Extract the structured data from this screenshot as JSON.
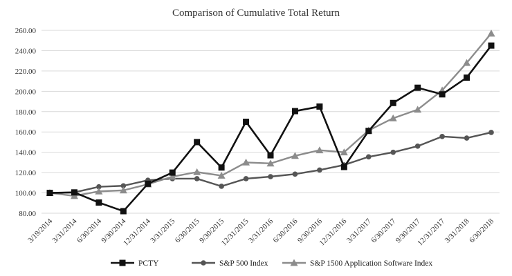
{
  "chart_data": {
    "type": "line",
    "title": "Comparison of Cumulative Total Return",
    "xlabel": "",
    "ylabel": "",
    "ylim": [
      80,
      260
    ],
    "yticks": [
      "260.00",
      "240.00",
      "220.00",
      "200.00",
      "180.00",
      "160.00",
      "140.00",
      "120.00",
      "100.00",
      "80.00"
    ],
    "ytick_values": [
      260,
      240,
      220,
      200,
      180,
      160,
      140,
      120,
      100,
      80
    ],
    "categories": [
      "3/19/2014",
      "3/31/2014",
      "6/30/2014",
      "9/30/2014",
      "12/31/2014",
      "3/31/2015",
      "6/30/2015",
      "9/30/2015",
      "12/31/2015",
      "3/31/2016",
      "6/30/2016",
      "9/30/2016",
      "12/31/2016",
      "3/31/2017",
      "6/30/2017",
      "9/30/2017",
      "12/31/2017",
      "3/31/2018",
      "6/30/2018"
    ],
    "grid": true,
    "legend_position": "bottom",
    "series": [
      {
        "name": "PCTY",
        "color": "#111111",
        "marker": "square",
        "values": [
          100.0,
          100.5,
          90.5,
          82.0,
          109.0,
          120.0,
          150.0,
          125.0,
          170.0,
          137.0,
          180.5,
          185.0,
          125.5,
          161.0,
          188.5,
          203.5,
          197.0,
          213.5,
          245.0
        ]
      },
      {
        "name": "S&P 500 Index",
        "color": "#555555",
        "marker": "circle",
        "values": [
          100.0,
          100.5,
          106.0,
          107.0,
          112.5,
          114.0,
          114.0,
          106.5,
          114.0,
          116.0,
          118.5,
          122.5,
          127.5,
          135.5,
          140.0,
          146.0,
          155.5,
          154.0,
          159.5
        ]
      },
      {
        "name": "S&P 1500 Application Software Index",
        "color": "#8c8c8c",
        "marker": "triangle",
        "values": [
          100.0,
          97.0,
          101.5,
          102.5,
          108.5,
          116.0,
          120.5,
          117.0,
          130.0,
          129.0,
          136.5,
          142.0,
          140.0,
          161.5,
          173.5,
          182.0,
          201.0,
          228.0,
          257.0
        ]
      }
    ]
  }
}
